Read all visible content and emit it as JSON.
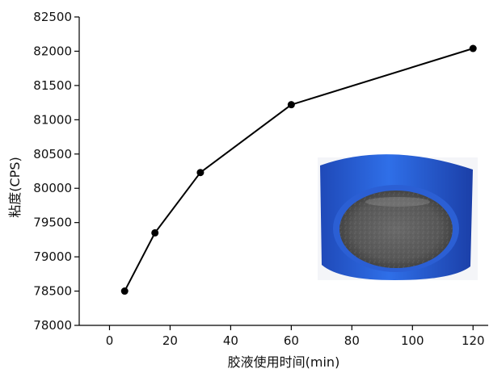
{
  "chart_data": {
    "type": "line",
    "title": "",
    "xlabel": "胶液使用时间(min)",
    "ylabel": "粘度(CPS)",
    "x": [
      5,
      15,
      30,
      60,
      120
    ],
    "series": [
      {
        "values": [
          78500,
          79350,
          80230,
          81220,
          82040
        ],
        "color": "#000000"
      }
    ],
    "xlim": [
      -10,
      125
    ],
    "ylim": [
      78000,
      82500
    ],
    "xticks": [
      0,
      20,
      40,
      60,
      80,
      100,
      120
    ],
    "yticks": [
      78000,
      78500,
      79000,
      79500,
      80000,
      80500,
      81000,
      81500,
      82000,
      82500
    ],
    "grid": false,
    "marker": "circle",
    "inset_photo": "blue-cap-container-with-dark-liquid"
  }
}
